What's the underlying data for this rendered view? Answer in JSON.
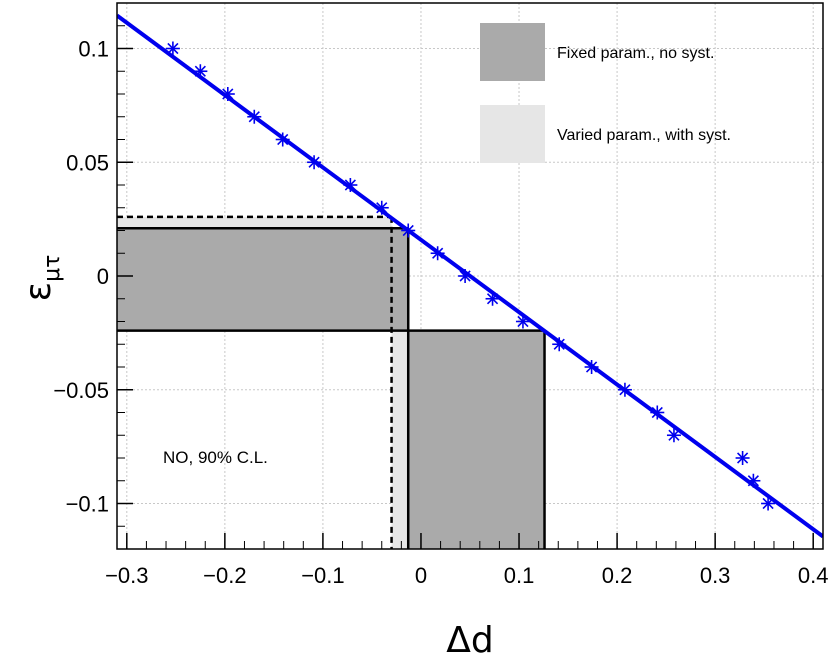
{
  "chart_data": {
    "type": "line",
    "title": "",
    "xlabel": "Δd",
    "ylabel": {
      "main": "ε",
      "sub": "μτ"
    },
    "xlim": [
      -0.31,
      0.41
    ],
    "ylim": [
      -0.12,
      0.12
    ],
    "x_ticks": [
      -0.3,
      -0.2,
      -0.1,
      0,
      0.1,
      0.2,
      0.3,
      0.4
    ],
    "x_tick_labels": [
      "−0.3",
      "−0.2",
      "−0.1",
      "0",
      "0.1",
      "0.2",
      "0.3",
      "0.4"
    ],
    "y_ticks": [
      -0.1,
      -0.05,
      0,
      0.05,
      0.1
    ],
    "y_tick_labels": [
      "−0.1",
      "−0.05",
      "0",
      "0.05",
      "0.1"
    ],
    "grid": true,
    "legend_position": "top-right",
    "legend": [
      {
        "label": "Fixed param., no syst.",
        "color": "#aaaaaa"
      },
      {
        "label": "Varied param., with syst.",
        "color": "#e6e6e6"
      }
    ],
    "annotation": "NO, 90% C.L.",
    "fit_line": {
      "color": "#0000ee",
      "x": [
        -0.31,
        0.41
      ],
      "y": [
        0.1145,
        -0.1145
      ]
    },
    "markers": {
      "color": "#0000ee",
      "symbol": "asterisk",
      "points": [
        [
          -0.253,
          0.1
        ],
        [
          -0.225,
          0.09
        ],
        [
          -0.197,
          0.08
        ],
        [
          -0.17,
          0.07
        ],
        [
          -0.141,
          0.06
        ],
        [
          -0.109,
          0.05
        ],
        [
          -0.072,
          0.04
        ],
        [
          -0.04,
          0.03
        ],
        [
          -0.013,
          0.02
        ],
        [
          0.017,
          0.01
        ],
        [
          0.045,
          0.0
        ],
        [
          0.073,
          -0.01
        ],
        [
          0.104,
          -0.02
        ],
        [
          0.141,
          -0.03
        ],
        [
          0.174,
          -0.04
        ],
        [
          0.208,
          -0.05
        ],
        [
          0.241,
          -0.06
        ],
        [
          0.258,
          -0.07
        ],
        [
          0.328,
          -0.08
        ],
        [
          0.339,
          -0.09
        ],
        [
          0.354,
          -0.1
        ]
      ]
    },
    "regions": {
      "fixed_no_syst": {
        "color": "#aaaaaa",
        "horizontal_band": {
          "x": [
            -0.31,
            -0.013
          ],
          "y": [
            -0.024,
            0.021
          ]
        },
        "vertical_band": {
          "x": [
            -0.013,
            0.126
          ],
          "y": [
            -0.12,
            -0.024
          ]
        },
        "outline": [
          [
            -0.31,
            0.021
          ],
          [
            -0.013,
            0.021
          ],
          [
            -0.013,
            -0.12
          ],
          [
            -0.31,
            -0.024
          ],
          [
            0.126,
            -0.024
          ],
          [
            0.126,
            -0.12
          ]
        ]
      },
      "varied_with_syst": {
        "color": "#e6e6e6",
        "horizontal_band": {
          "x": [
            -0.31,
            -0.03
          ],
          "y": [
            -0.024,
            0.026
          ]
        },
        "vertical_band": {
          "x": [
            -0.03,
            0.126
          ],
          "y": [
            -0.12,
            -0.024
          ]
        },
        "dashed_outline": {
          "y_upper": 0.026,
          "x_left": -0.03,
          "x_right_top": -0.03
        }
      }
    }
  }
}
